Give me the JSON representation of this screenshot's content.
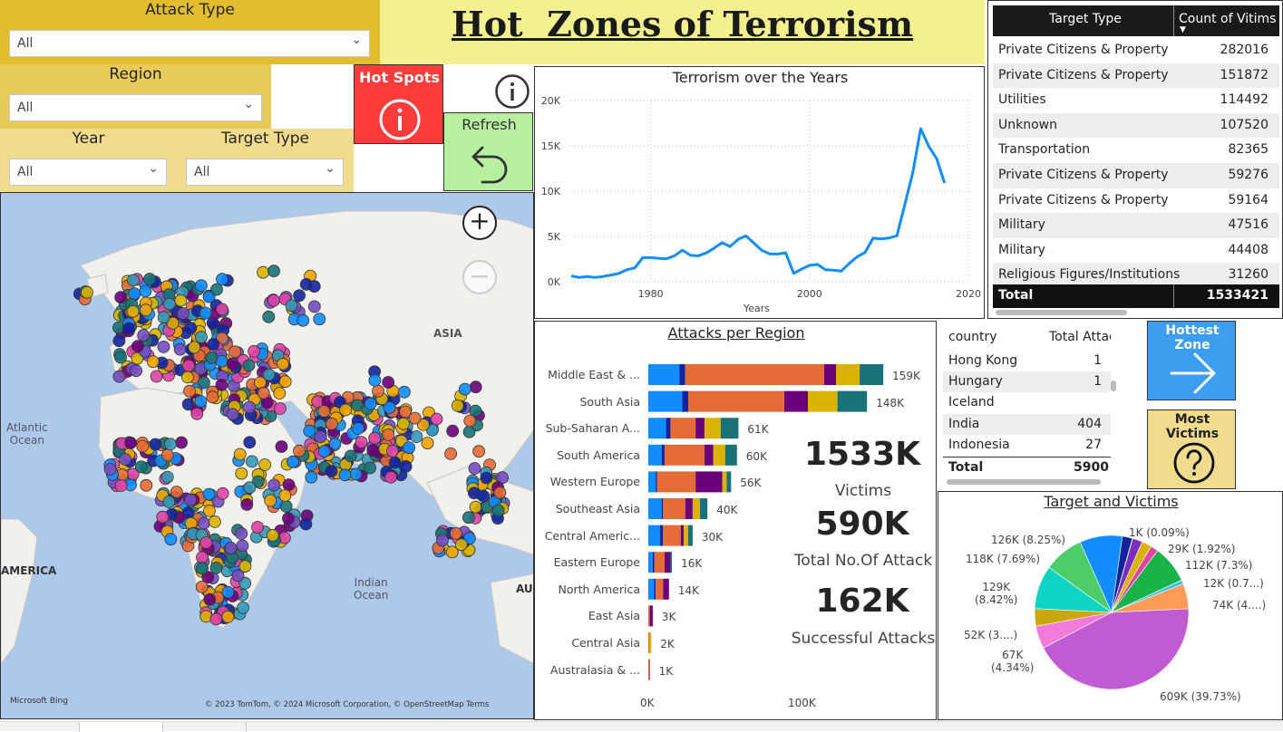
{
  "title": "Hot  Zones of Terrorism",
  "slicers": {
    "attack_type": {
      "label": "Attack Type",
      "value": "All"
    },
    "region": {
      "label": "Region",
      "value": "All"
    },
    "year": {
      "label": "Year",
      "value": "All"
    },
    "target_type": {
      "label": "Target Type",
      "value": "All"
    }
  },
  "buttons": {
    "hot_spots": "Hot Spots",
    "refresh": "Refresh",
    "hottest_zone": "Hottest Zone",
    "most_victims": "Most Victims"
  },
  "colors": {
    "title_bg": "#f3f18f",
    "slicer_dark": "#e2bd2e",
    "slicer_mid": "#e8ca5a",
    "slicer_light": "#f0dc8c",
    "hot_spots_bg": "#ff3b3b",
    "refresh_bg": "#b7f0a0",
    "hottest_bg": "#3d9df0",
    "most_victims_bg": "#f0dc8c",
    "line": "#118dff"
  },
  "target_table": {
    "headers": [
      "Target Type",
      "Count of Vitims"
    ],
    "rows": [
      [
        "Private Citizens & Property",
        "282016"
      ],
      [
        "Private Citizens & Property",
        "151872"
      ],
      [
        "Utilities",
        "114492"
      ],
      [
        "Unknown",
        "107520"
      ],
      [
        "Transportation",
        "82365"
      ],
      [
        "Private Citizens & Property",
        "59276"
      ],
      [
        "Private Citizens & Property",
        "59164"
      ],
      [
        "Military",
        "47516"
      ],
      [
        "Military",
        "44408"
      ],
      [
        "Religious Figures/Institutions",
        "31260"
      ]
    ],
    "total_label": "Total",
    "total_value": "1533421"
  },
  "map": {
    "labels": {
      "asia": "ASIA",
      "atlantic": "Atlantic\nOcean",
      "indian": "Indian\nOcean",
      "america": "AMERICA",
      "au": "AU"
    },
    "bing": "Microsoft Bing",
    "credits": "© 2023 TomTom, © 2024 Microsoft Corporation, © OpenStreetMap  Terms",
    "zoom_in": "+",
    "zoom_out": "−"
  },
  "kpis": {
    "victims": {
      "value": "1533K",
      "label": "Victims"
    },
    "attacks": {
      "value": "590K",
      "label": "Total No.Of Attack"
    },
    "successful": {
      "value": "162K",
      "label": "Successful Attacks"
    }
  },
  "country_table": {
    "headers": [
      "country",
      "Total Attac"
    ],
    "rows": [
      [
        "Hong Kong",
        "1"
      ],
      [
        "Hungary",
        "1"
      ],
      [
        "Iceland",
        ""
      ],
      [
        "India",
        "404"
      ],
      [
        "Indonesia",
        "27"
      ]
    ],
    "total_label": "Total",
    "total_value": "5900"
  },
  "chart_data": [
    {
      "type": "line",
      "title": "Terrorism over the Years",
      "xlabel": "Years",
      "ylabel": "",
      "xlim": [
        1970,
        2020
      ],
      "ylim": [
        0,
        20000
      ],
      "xticks": [
        "1980",
        "2000",
        "2020"
      ],
      "yticks": [
        "0K",
        "5K",
        "10K",
        "15K",
        "20K"
      ],
      "x": [
        1970,
        1971,
        1972,
        1973,
        1974,
        1975,
        1976,
        1977,
        1978,
        1979,
        1980,
        1981,
        1982,
        1983,
        1984,
        1985,
        1986,
        1987,
        1988,
        1989,
        1990,
        1991,
        1992,
        1994,
        1995,
        1996,
        1997,
        1998,
        1999,
        2000,
        2001,
        2002,
        2003,
        2004,
        2005,
        2006,
        2007,
        2008,
        2009,
        2010,
        2011,
        2012,
        2013,
        2014,
        2015,
        2016,
        2017
      ],
      "y": [
        651,
        471,
        568,
        473,
        581,
        740,
        923,
        1319,
        1526,
        2662,
        2662,
        2586,
        2544,
        2870,
        3495,
        2915,
        2860,
        3183,
        3721,
        4324,
        3887,
        4683,
        5071,
        3456,
        3081,
        3058,
        3197,
        934,
        1395,
        1814,
        1906,
        1333,
        1278,
        1166,
        2017,
        2758,
        3242,
        4805,
        4721,
        4826,
        5076,
        8522,
        12036,
        16903,
        14965,
        13587,
        10900
      ]
    },
    {
      "type": "bar",
      "title": "Attacks per Region",
      "xlim": [
        0,
        110000
      ],
      "xticks": [
        "0K",
        "100K"
      ],
      "categories": [
        "Middle East & ...",
        "South Asia",
        "Sub-Saharan A...",
        "South America",
        "Western Europe",
        "Southeast Asia",
        "Central Americ...",
        "Eastern Europe",
        "North America",
        "East Asia",
        "Central Asia",
        "Australasia & ..."
      ],
      "value_labels": [
        "159K",
        "148K",
        "61K",
        "60K",
        "56K",
        "40K",
        "30K",
        "16K",
        "14K",
        "3K",
        "2K",
        "1K"
      ],
      "segments": [
        [
          {
            "v": 21000,
            "c": "#118dff"
          },
          {
            "v": 4000,
            "c": "#12239e"
          },
          {
            "v": 94000,
            "c": "#e66c37"
          },
          {
            "v": 8000,
            "c": "#6b007b"
          },
          {
            "v": 16000,
            "c": "#d9b300"
          },
          {
            "v": 16000,
            "c": "#197278"
          }
        ],
        [
          {
            "v": 23000,
            "c": "#118dff"
          },
          {
            "v": 4000,
            "c": "#12239e"
          },
          {
            "v": 65000,
            "c": "#e66c37"
          },
          {
            "v": 16000,
            "c": "#6b007b"
          },
          {
            "v": 20000,
            "c": "#d9b300"
          },
          {
            "v": 20000,
            "c": "#197278"
          }
        ],
        [
          {
            "v": 12000,
            "c": "#118dff"
          },
          {
            "v": 3000,
            "c": "#12239e"
          },
          {
            "v": 17000,
            "c": "#e66c37"
          },
          {
            "v": 6000,
            "c": "#6b007b"
          },
          {
            "v": 11000,
            "c": "#d9b300"
          },
          {
            "v": 12000,
            "c": "#197278"
          }
        ],
        [
          {
            "v": 9000,
            "c": "#118dff"
          },
          {
            "v": 2000,
            "c": "#12239e"
          },
          {
            "v": 27000,
            "c": "#e66c37"
          },
          {
            "v": 6000,
            "c": "#6b007b"
          },
          {
            "v": 8000,
            "c": "#d9b300"
          },
          {
            "v": 8000,
            "c": "#197278"
          }
        ],
        [
          {
            "v": 5000,
            "c": "#118dff"
          },
          {
            "v": 1000,
            "c": "#12239e"
          },
          {
            "v": 26000,
            "c": "#e66c37"
          },
          {
            "v": 18000,
            "c": "#6b007b"
          },
          {
            "v": 3000,
            "c": "#d9b300"
          },
          {
            "v": 3000,
            "c": "#197278"
          }
        ],
        [
          {
            "v": 9000,
            "c": "#118dff"
          },
          {
            "v": 1000,
            "c": "#12239e"
          },
          {
            "v": 15000,
            "c": "#e66c37"
          },
          {
            "v": 5000,
            "c": "#6b007b"
          },
          {
            "v": 5000,
            "c": "#d9b300"
          },
          {
            "v": 5000,
            "c": "#197278"
          }
        ],
        [
          {
            "v": 8000,
            "c": "#118dff"
          },
          {
            "v": 2000,
            "c": "#12239e"
          },
          {
            "v": 12000,
            "c": "#e66c37"
          },
          {
            "v": 2000,
            "c": "#6b007b"
          },
          {
            "v": 3000,
            "c": "#d9b300"
          },
          {
            "v": 3000,
            "c": "#197278"
          }
        ],
        [
          {
            "v": 3000,
            "c": "#118dff"
          },
          {
            "v": 1000,
            "c": "#12239e"
          },
          {
            "v": 7000,
            "c": "#e66c37"
          },
          {
            "v": 4000,
            "c": "#6b007b"
          },
          {
            "v": 1000,
            "c": "#197278"
          }
        ],
        [
          {
            "v": 4000,
            "c": "#118dff"
          },
          {
            "v": 1000,
            "c": "#12239e"
          },
          {
            "v": 5000,
            "c": "#e66c37"
          },
          {
            "v": 4000,
            "c": "#6b007b"
          }
        ],
        [
          {
            "v": 1000,
            "c": "#e66c37"
          },
          {
            "v": 2000,
            "c": "#6b007b"
          }
        ],
        [
          {
            "v": 1000,
            "c": "#e66c37"
          },
          {
            "v": 1000,
            "c": "#d9b300"
          }
        ],
        [
          {
            "v": 500,
            "c": "#e66c37"
          },
          {
            "v": 500,
            "c": "#6b007b"
          }
        ]
      ]
    },
    {
      "type": "pie",
      "title": "Target and Victims",
      "slices": [
        {
          "v": 609,
          "c": "#c15bd1",
          "label": "609K (39.73%)"
        },
        {
          "v": 67,
          "c": "#f27ad9",
          "label": "67K\n(4.34%)"
        },
        {
          "v": 52,
          "c": "#c8a70f",
          "label": "52K (3....)"
        },
        {
          "v": 129,
          "c": "#0fd4c4",
          "label": "129K\n(8.42%)"
        },
        {
          "v": 118,
          "c": "#4ccc6b",
          "label": "118K (7.69%)"
        },
        {
          "v": 126,
          "c": "#118dff",
          "label": "126K (8.25%)"
        },
        {
          "v": 30,
          "c": "#12239e",
          "label": ""
        },
        {
          "v": 1,
          "c": "#6b007b",
          "label": "1K (0.09%)"
        },
        {
          "v": 29,
          "c": "#7b2fbf",
          "label": "29K (1.92%)"
        },
        {
          "v": 30,
          "c": "#d9b300",
          "label": ""
        },
        {
          "v": 22,
          "c": "#e044a7",
          "label": ""
        },
        {
          "v": 112,
          "c": "#1ab34a",
          "label": "112K (7.3%)"
        },
        {
          "v": 12,
          "c": "#3ec3e6",
          "label": "12K (0.7...)"
        },
        {
          "v": 74,
          "c": "#ff9a57",
          "label": "74K (4....)"
        }
      ]
    }
  ]
}
